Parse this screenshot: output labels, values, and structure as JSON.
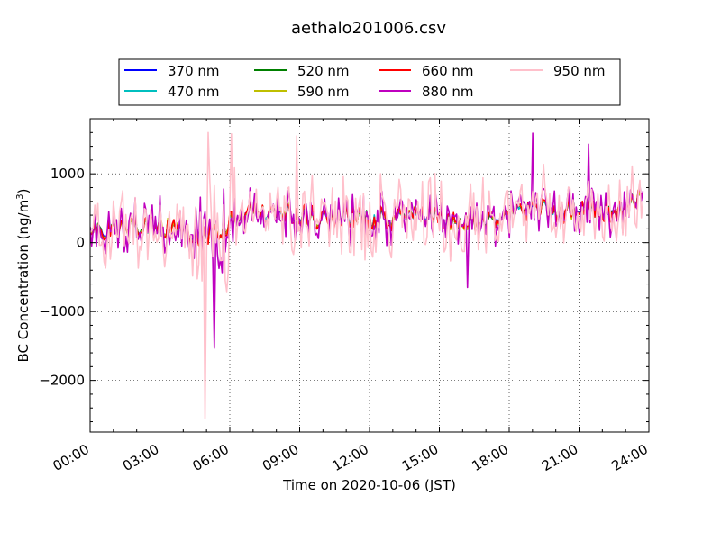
{
  "chart_data": {
    "type": "line",
    "title": "aethalo201006.csv",
    "xlabel": "Time on 2020-10-06 (JST)",
    "ylabel_main": "BC Concentration (ng/m",
    "ylabel_sup": "3",
    "ylabel_tail": ")",
    "xlim": [
      0,
      24
    ],
    "ylim": [
      -2750,
      1800
    ],
    "x_tick_values": [
      0,
      3,
      6,
      9,
      12,
      15,
      18,
      21,
      24
    ],
    "x_tick_labels": [
      "00:00",
      "03:00",
      "06:00",
      "09:00",
      "12:00",
      "15:00",
      "18:00",
      "21:00",
      "24:00"
    ],
    "y_tick_values": [
      -2000,
      -1000,
      0,
      1000
    ],
    "y_tick_labels": [
      "−2000",
      "−1000",
      "0",
      "1000"
    ],
    "grid": true,
    "legend_position": "top-center",
    "series": [
      {
        "name": "370 nm",
        "color": "#0000ff"
      },
      {
        "name": "470 nm",
        "color": "#00bfbf"
      },
      {
        "name": "520 nm",
        "color": "#008000"
      },
      {
        "name": "590 nm",
        "color": "#bfbf00"
      },
      {
        "name": "660 nm",
        "color": "#ff0000"
      },
      {
        "name": "880 nm",
        "color": "#bf00bf"
      },
      {
        "name": "950 nm",
        "color": "#ffc0cb"
      }
    ],
    "trend_points": {
      "x": [
        0,
        1,
        2,
        3,
        4,
        4.6,
        5,
        5.4,
        5.8,
        6.5,
        7.5,
        8.5,
        9,
        10,
        11,
        12,
        13,
        14,
        15,
        16,
        17,
        18,
        19,
        20,
        21,
        22,
        23,
        23.8
      ],
      "y": [
        150,
        250,
        250,
        250,
        200,
        100,
        100,
        150,
        250,
        400,
        450,
        450,
        400,
        350,
        400,
        350,
        350,
        400,
        350,
        300,
        300,
        400,
        500,
        450,
        500,
        450,
        550,
        700
      ]
    },
    "spread_by_series": [
      150,
      160,
      170,
      180,
      200,
      450,
      700
    ],
    "extremes": [
      {
        "series": "950 nm",
        "x": 4.95,
        "y": -2550
      },
      {
        "series": "880 nm",
        "x": 5.35,
        "y": -1530
      },
      {
        "series": "950 nm",
        "x": 5.1,
        "y": 1600
      },
      {
        "series": "950 nm",
        "x": 6.05,
        "y": 1580
      },
      {
        "series": "880 nm",
        "x": 19.0,
        "y": 1590
      },
      {
        "series": "880 nm",
        "x": 21.4,
        "y": 1430
      },
      {
        "series": "950 nm",
        "x": 8.9,
        "y": 1550
      },
      {
        "series": "880 nm",
        "x": 16.2,
        "y": -650
      }
    ]
  }
}
